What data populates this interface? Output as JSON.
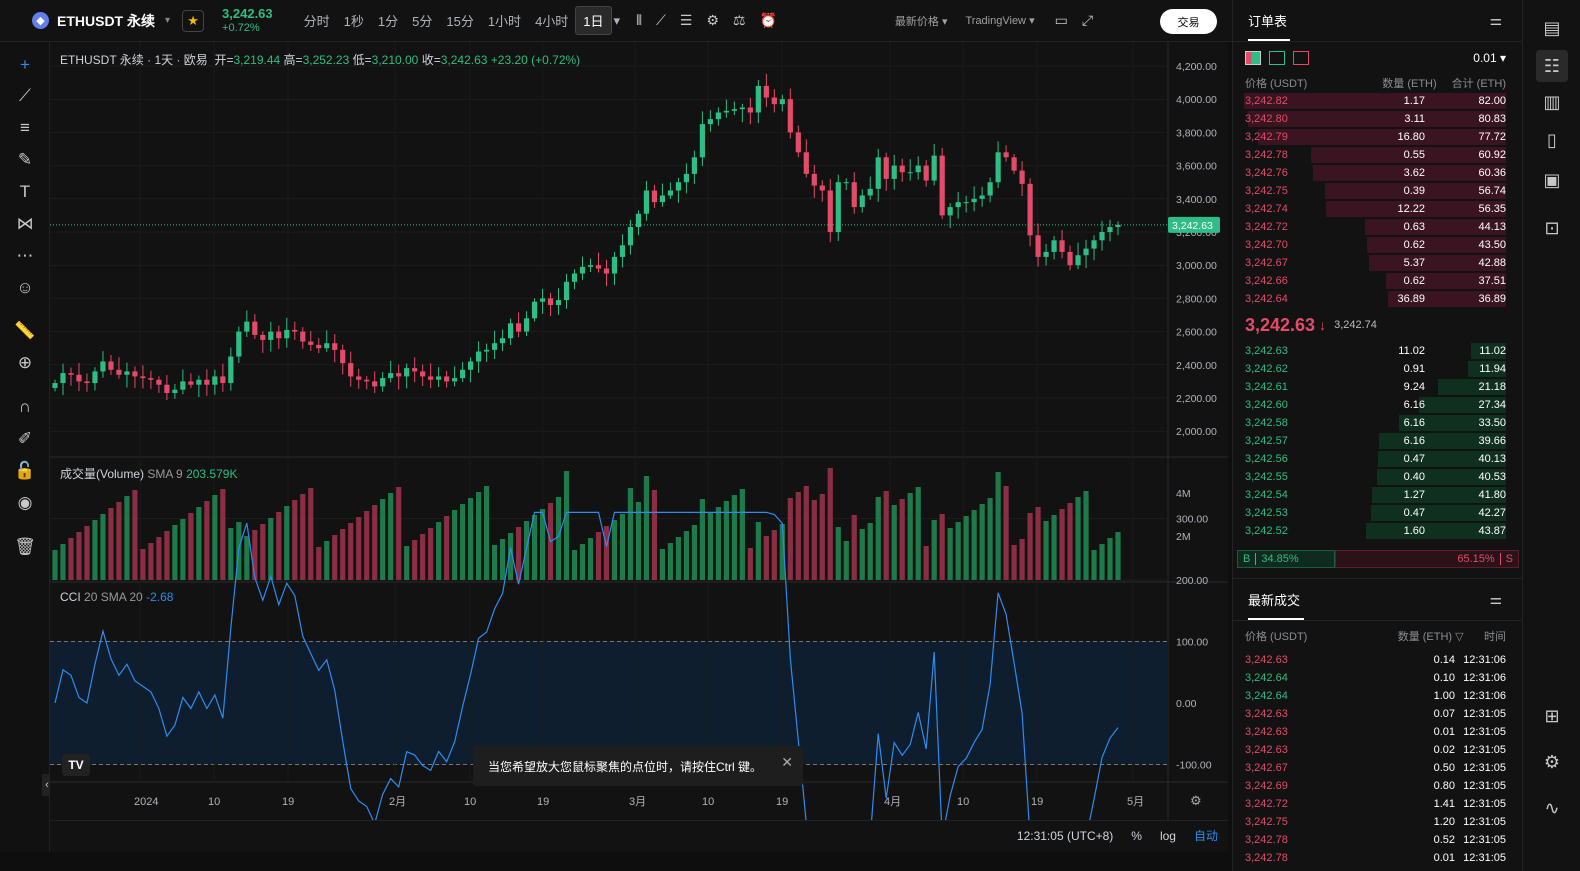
{
  "header": {
    "symbol": "ETHUSDT 永续",
    "price": "3,242.63",
    "change": "+0.72%",
    "timeframes": [
      "分时",
      "1秒",
      "1分",
      "5分",
      "15分",
      "1小时",
      "4小时",
      "1日"
    ],
    "active_timeframe": "1日",
    "price_type": "最新价格",
    "chart_type": "TradingView",
    "trade_button": "交易"
  },
  "chart": {
    "legend_title": "ETHUSDT 永续 · 1天 · 欧易",
    "open_label": "开=",
    "open": "3,219.44",
    "high_label": "高=",
    "high": "3,252.23",
    "low_label": "低=",
    "low": "3,210.00",
    "close_label": "收=",
    "close": "3,242.63",
    "change": "+23.20 (+0.72%)",
    "volume_label": "成交量(Volume)",
    "volume_sma": "SMA 9",
    "volume_value": "203.579K",
    "cci_label": "CCI",
    "cci_params": "20 SMA 20",
    "cci_value": "-2.68",
    "price_axis": [
      "4,200.00",
      "4,000.00",
      "3,800.00",
      "3,600.00",
      "3,400.00",
      "3,200.00",
      "3,000.00",
      "2,800.00",
      "2,600.00",
      "2,400.00",
      "2,200.00",
      "2,000.00"
    ],
    "current_price_tag": "3,242.63",
    "volume_axis": [
      "4M",
      "2M"
    ],
    "cci_axis": [
      "300.00",
      "200.00",
      "100.00",
      "0.00",
      "-100.00",
      "-200.00"
    ],
    "time_axis": [
      "2024",
      "10",
      "19",
      "2月",
      "10",
      "19",
      "3月",
      "10",
      "19",
      "4月",
      "10",
      "19",
      "5月"
    ],
    "toast": "当您希望放大您鼠标聚焦的点位时，请按住Ctrl 键。",
    "clock": "12:31:05 (UTC+8)",
    "percent": "%",
    "log": "log",
    "auto": "自动"
  },
  "orderbook": {
    "title": "订单表",
    "precision": "0.01",
    "headers": [
      "价格 (USDT)",
      "数量 (ETH)",
      "合计 (ETH)"
    ],
    "asks": [
      {
        "p": "3,242.82",
        "q": "1.17",
        "t": "82.00"
      },
      {
        "p": "3,242.80",
        "q": "3.11",
        "t": "80.83"
      },
      {
        "p": "3,242.79",
        "q": "16.80",
        "t": "77.72"
      },
      {
        "p": "3,242.78",
        "q": "0.55",
        "t": "60.92"
      },
      {
        "p": "3,242.76",
        "q": "3.62",
        "t": "60.36"
      },
      {
        "p": "3,242.75",
        "q": "0.39",
        "t": "56.74"
      },
      {
        "p": "3,242.74",
        "q": "12.22",
        "t": "56.35"
      },
      {
        "p": "3,242.72",
        "q": "0.63",
        "t": "44.13"
      },
      {
        "p": "3,242.70",
        "q": "0.62",
        "t": "43.50"
      },
      {
        "p": "3,242.67",
        "q": "5.37",
        "t": "42.88"
      },
      {
        "p": "3,242.66",
        "q": "0.62",
        "t": "37.51"
      },
      {
        "p": "3,242.64",
        "q": "36.89",
        "t": "36.89"
      }
    ],
    "mid_price": "3,242.63",
    "mid_arrow": "↓",
    "mark_price": "3,242.74",
    "bids": [
      {
        "p": "3,242.63",
        "q": "11.02",
        "t": "11.02"
      },
      {
        "p": "3,242.62",
        "q": "0.91",
        "t": "11.94"
      },
      {
        "p": "3,242.61",
        "q": "9.24",
        "t": "21.18"
      },
      {
        "p": "3,242.60",
        "q": "6.16",
        "t": "27.34"
      },
      {
        "p": "3,242.58",
        "q": "6.16",
        "t": "33.50"
      },
      {
        "p": "3,242.57",
        "q": "6.16",
        "t": "39.66"
      },
      {
        "p": "3,242.56",
        "q": "0.47",
        "t": "40.13"
      },
      {
        "p": "3,242.55",
        "q": "0.40",
        "t": "40.53"
      },
      {
        "p": "3,242.54",
        "q": "1.27",
        "t": "41.80"
      },
      {
        "p": "3,242.53",
        "q": "0.47",
        "t": "42.27"
      },
      {
        "p": "3,242.52",
        "q": "1.60",
        "t": "43.87"
      }
    ],
    "buy_label": "B",
    "buy_pct": "34.85%",
    "sell_label": "S",
    "sell_pct": "65.15%",
    "buy_ratio": 0.3485
  },
  "trades": {
    "title": "最新成交",
    "headers": [
      "价格 (USDT)",
      "数量 (ETH)",
      "时间"
    ],
    "rows": [
      {
        "p": "3,242.63",
        "q": "0.14",
        "t": "12:31:06",
        "side": "sell"
      },
      {
        "p": "3,242.64",
        "q": "0.10",
        "t": "12:31:06",
        "side": "buy"
      },
      {
        "p": "3,242.64",
        "q": "1.00",
        "t": "12:31:06",
        "side": "buy"
      },
      {
        "p": "3,242.63",
        "q": "0.07",
        "t": "12:31:05",
        "side": "sell"
      },
      {
        "p": "3,242.63",
        "q": "0.01",
        "t": "12:31:05",
        "side": "sell"
      },
      {
        "p": "3,242.63",
        "q": "0.02",
        "t": "12:31:05",
        "side": "sell"
      },
      {
        "p": "3,242.67",
        "q": "0.50",
        "t": "12:31:05",
        "side": "sell"
      },
      {
        "p": "3,242.69",
        "q": "0.80",
        "t": "12:31:05",
        "side": "sell"
      },
      {
        "p": "3,242.72",
        "q": "1.41",
        "t": "12:31:05",
        "side": "sell"
      },
      {
        "p": "3,242.75",
        "q": "1.20",
        "t": "12:31:05",
        "side": "sell"
      },
      {
        "p": "3,242.78",
        "q": "0.52",
        "t": "12:31:05",
        "side": "sell"
      },
      {
        "p": "3,242.78",
        "q": "0.01",
        "t": "12:31:05",
        "side": "sell"
      }
    ]
  },
  "colors": {
    "up": "#2ebd85",
    "down": "#e34b6a",
    "cci": "#2d8cf0",
    "bg": "#121212"
  }
}
